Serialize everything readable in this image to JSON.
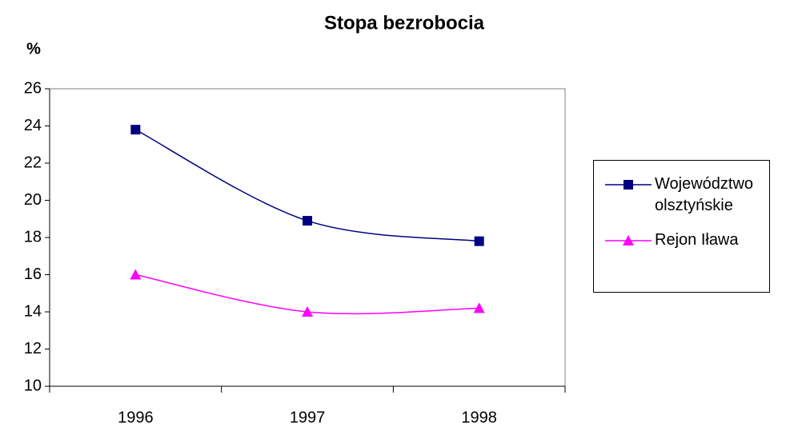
{
  "chart_data": {
    "type": "line",
    "title": "Stopa bezrobocia",
    "y_label": "%",
    "categories": [
      "1996",
      "1997",
      "1998"
    ],
    "series": [
      {
        "name": "Województwo olsztyńskie",
        "color": "#000080",
        "marker": "square",
        "values": [
          23.8,
          18.9,
          17.8
        ]
      },
      {
        "name": "Rejon Iława",
        "color": "#ff00ff",
        "marker": "triangle",
        "values": [
          16,
          14,
          14.2
        ]
      }
    ],
    "ylim": [
      10,
      26
    ],
    "yticks": [
      10,
      12,
      14,
      16,
      18,
      20,
      22,
      24,
      26
    ],
    "smooth": true,
    "legend": "right"
  }
}
